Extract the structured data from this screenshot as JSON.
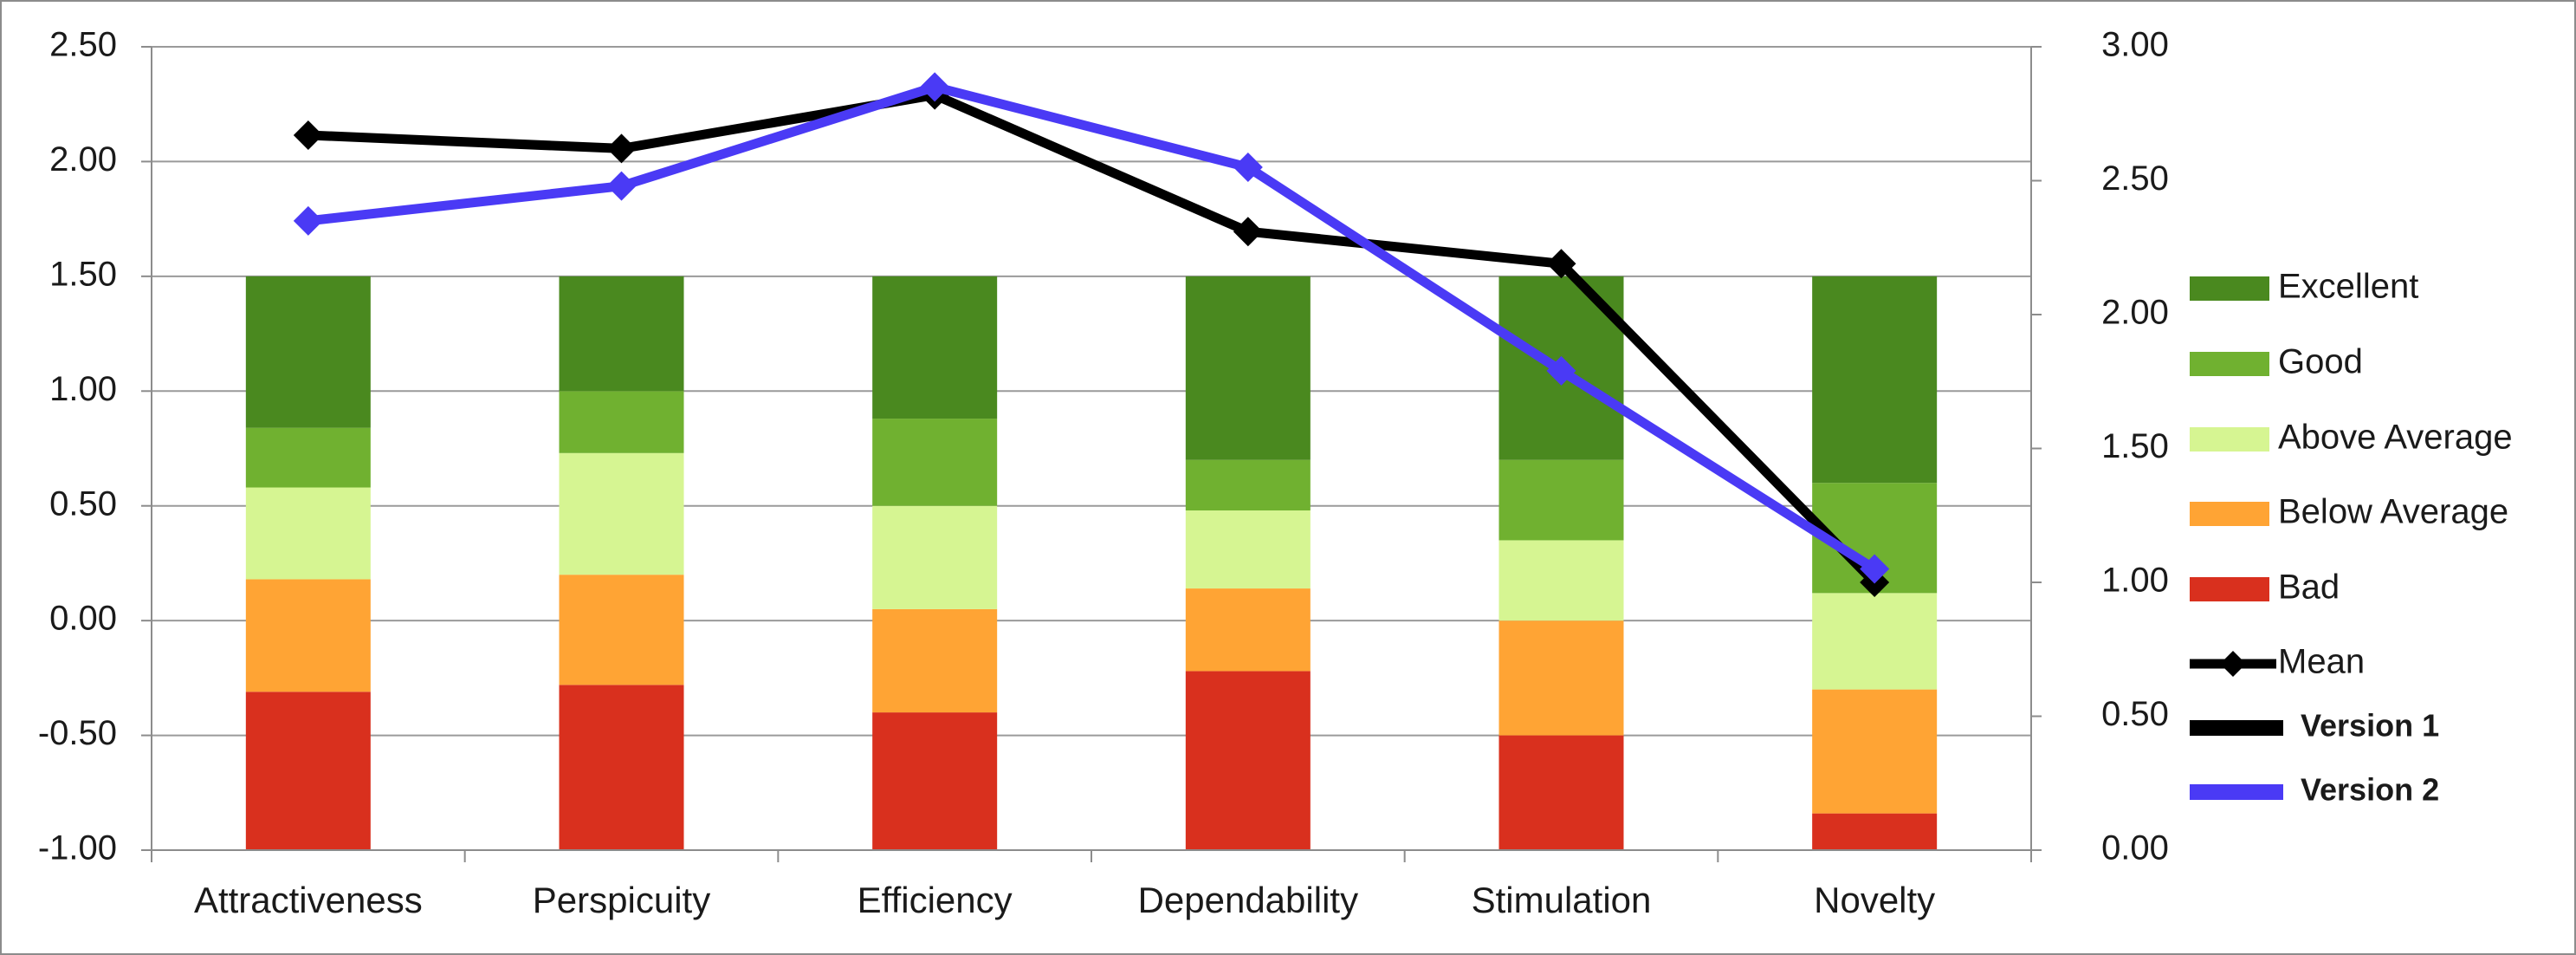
{
  "chart_data": {
    "type": "bar",
    "subtype": "stacked-bar-with-lines",
    "title": "",
    "xlabel": "",
    "ylabel": "",
    "categories": [
      "Attractiveness",
      "Perspicuity",
      "Efficiency",
      "Dependability",
      "Stimulation",
      "Novelty"
    ],
    "y_left": {
      "range": [
        -1.0,
        2.5
      ],
      "ticks": [
        -1.0,
        -0.5,
        0.0,
        0.5,
        1.0,
        1.5,
        2.0,
        2.5
      ],
      "tick_labels": [
        "-1.00",
        "-0.50",
        "0.00",
        "0.50",
        "1.00",
        "1.50",
        "2.00",
        "2.50"
      ]
    },
    "y_right": {
      "range": [
        0.0,
        3.0
      ],
      "ticks": [
        0.0,
        0.5,
        1.0,
        1.5,
        2.0,
        2.5,
        3.0
      ],
      "tick_labels": [
        "0.00",
        "0.50",
        "1.00",
        "1.50",
        "2.00",
        "2.50",
        "3.00"
      ]
    },
    "bar_base": -1.0,
    "series": [
      {
        "name": "Bad",
        "color": "#d9301e",
        "values": [
          0.69,
          0.72,
          0.6,
          0.78,
          0.5,
          0.16
        ]
      },
      {
        "name": "Below Average",
        "color": "#ffa434",
        "values": [
          0.49,
          0.48,
          0.45,
          0.36,
          0.5,
          0.54
        ]
      },
      {
        "name": "Above Average",
        "color": "#d6f592",
        "values": [
          0.4,
          0.53,
          0.45,
          0.34,
          0.35,
          0.42
        ]
      },
      {
        "name": "Good",
        "color": "#70b130",
        "values": [
          0.26,
          0.27,
          0.38,
          0.22,
          0.35,
          0.48
        ]
      },
      {
        "name": "Excellent",
        "color": "#4a891f",
        "values": [
          0.66,
          0.5,
          0.62,
          0.8,
          0.8,
          0.9
        ]
      }
    ],
    "lines": [
      {
        "name": "Version 1",
        "color": "#000000",
        "axis": "right",
        "values": [
          2.67,
          2.62,
          2.82,
          2.31,
          2.19,
          1.0
        ]
      },
      {
        "name": "Version 2",
        "color": "#4a3af5",
        "axis": "right",
        "values": [
          2.35,
          2.48,
          2.85,
          2.55,
          1.79,
          1.05
        ]
      }
    ],
    "legend": {
      "position": "right",
      "items": [
        "Excellent",
        "Good",
        "Above Average",
        "Below Average",
        "Bad",
        "Mean",
        "Version 1",
        "Version 2"
      ]
    },
    "grid": true
  }
}
